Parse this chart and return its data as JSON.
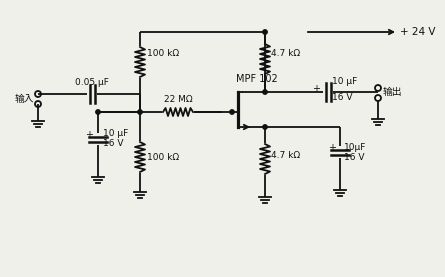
{
  "bg_color": "#f0f0eb",
  "line_color": "#111111",
  "input_label": "输入",
  "output_label": "输出",
  "pwr_label": "+ 24 V",
  "labels": {
    "cap1": "0.05 μF",
    "r1": "100 kΩ",
    "r2": "22 MΩ",
    "r3": "100 kΩ",
    "r4": "4.7 kΩ",
    "r5": "4.7 kΩ",
    "cap2a": "10 μF",
    "cap2b": "16 V",
    "cap3a": "10 μF",
    "cap3b": "16 V",
    "cap4a": "10μF",
    "cap4b": "16 V",
    "fet": "MPF 102"
  }
}
